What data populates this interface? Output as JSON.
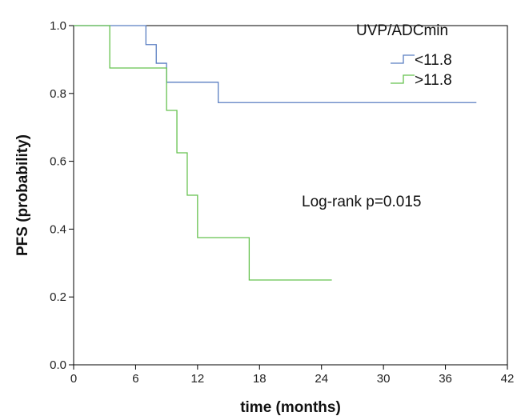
{
  "chart_data": {
    "type": "line",
    "xlabel": "time (months)",
    "ylabel": "PFS (probability)",
    "xlim": [
      0,
      42
    ],
    "ylim": [
      0.0,
      1.0
    ],
    "x_ticks": [
      0,
      6,
      12,
      18,
      24,
      30,
      36,
      42
    ],
    "y_ticks": [
      0.0,
      0.2,
      0.4,
      0.6,
      0.8,
      1.0
    ],
    "x_tick_labels": [
      "0",
      "6",
      "12",
      "18",
      "24",
      "30",
      "36",
      "42"
    ],
    "y_tick_labels": [
      "0.0",
      "0.2",
      "0.4",
      "0.6",
      "0.8",
      "1.0"
    ],
    "step_style": "post",
    "legend_title": "UVP/ADCmin",
    "legend_position": "top-right",
    "annotation": "Log-rank p=0.015",
    "series": [
      {
        "name": "<11.8",
        "color": "#5b7fc2",
        "x": [
          0,
          7,
          8,
          9,
          14,
          39
        ],
        "y": [
          1.0,
          0.944,
          0.889,
          0.833,
          0.773,
          0.773
        ]
      },
      {
        "name": ">11.8",
        "color": "#66c24f",
        "x": [
          0,
          3.5,
          9,
          10,
          11,
          12,
          17,
          25
        ],
        "y": [
          1.0,
          0.875,
          0.75,
          0.625,
          0.5,
          0.375,
          0.25,
          0.25
        ]
      }
    ]
  }
}
